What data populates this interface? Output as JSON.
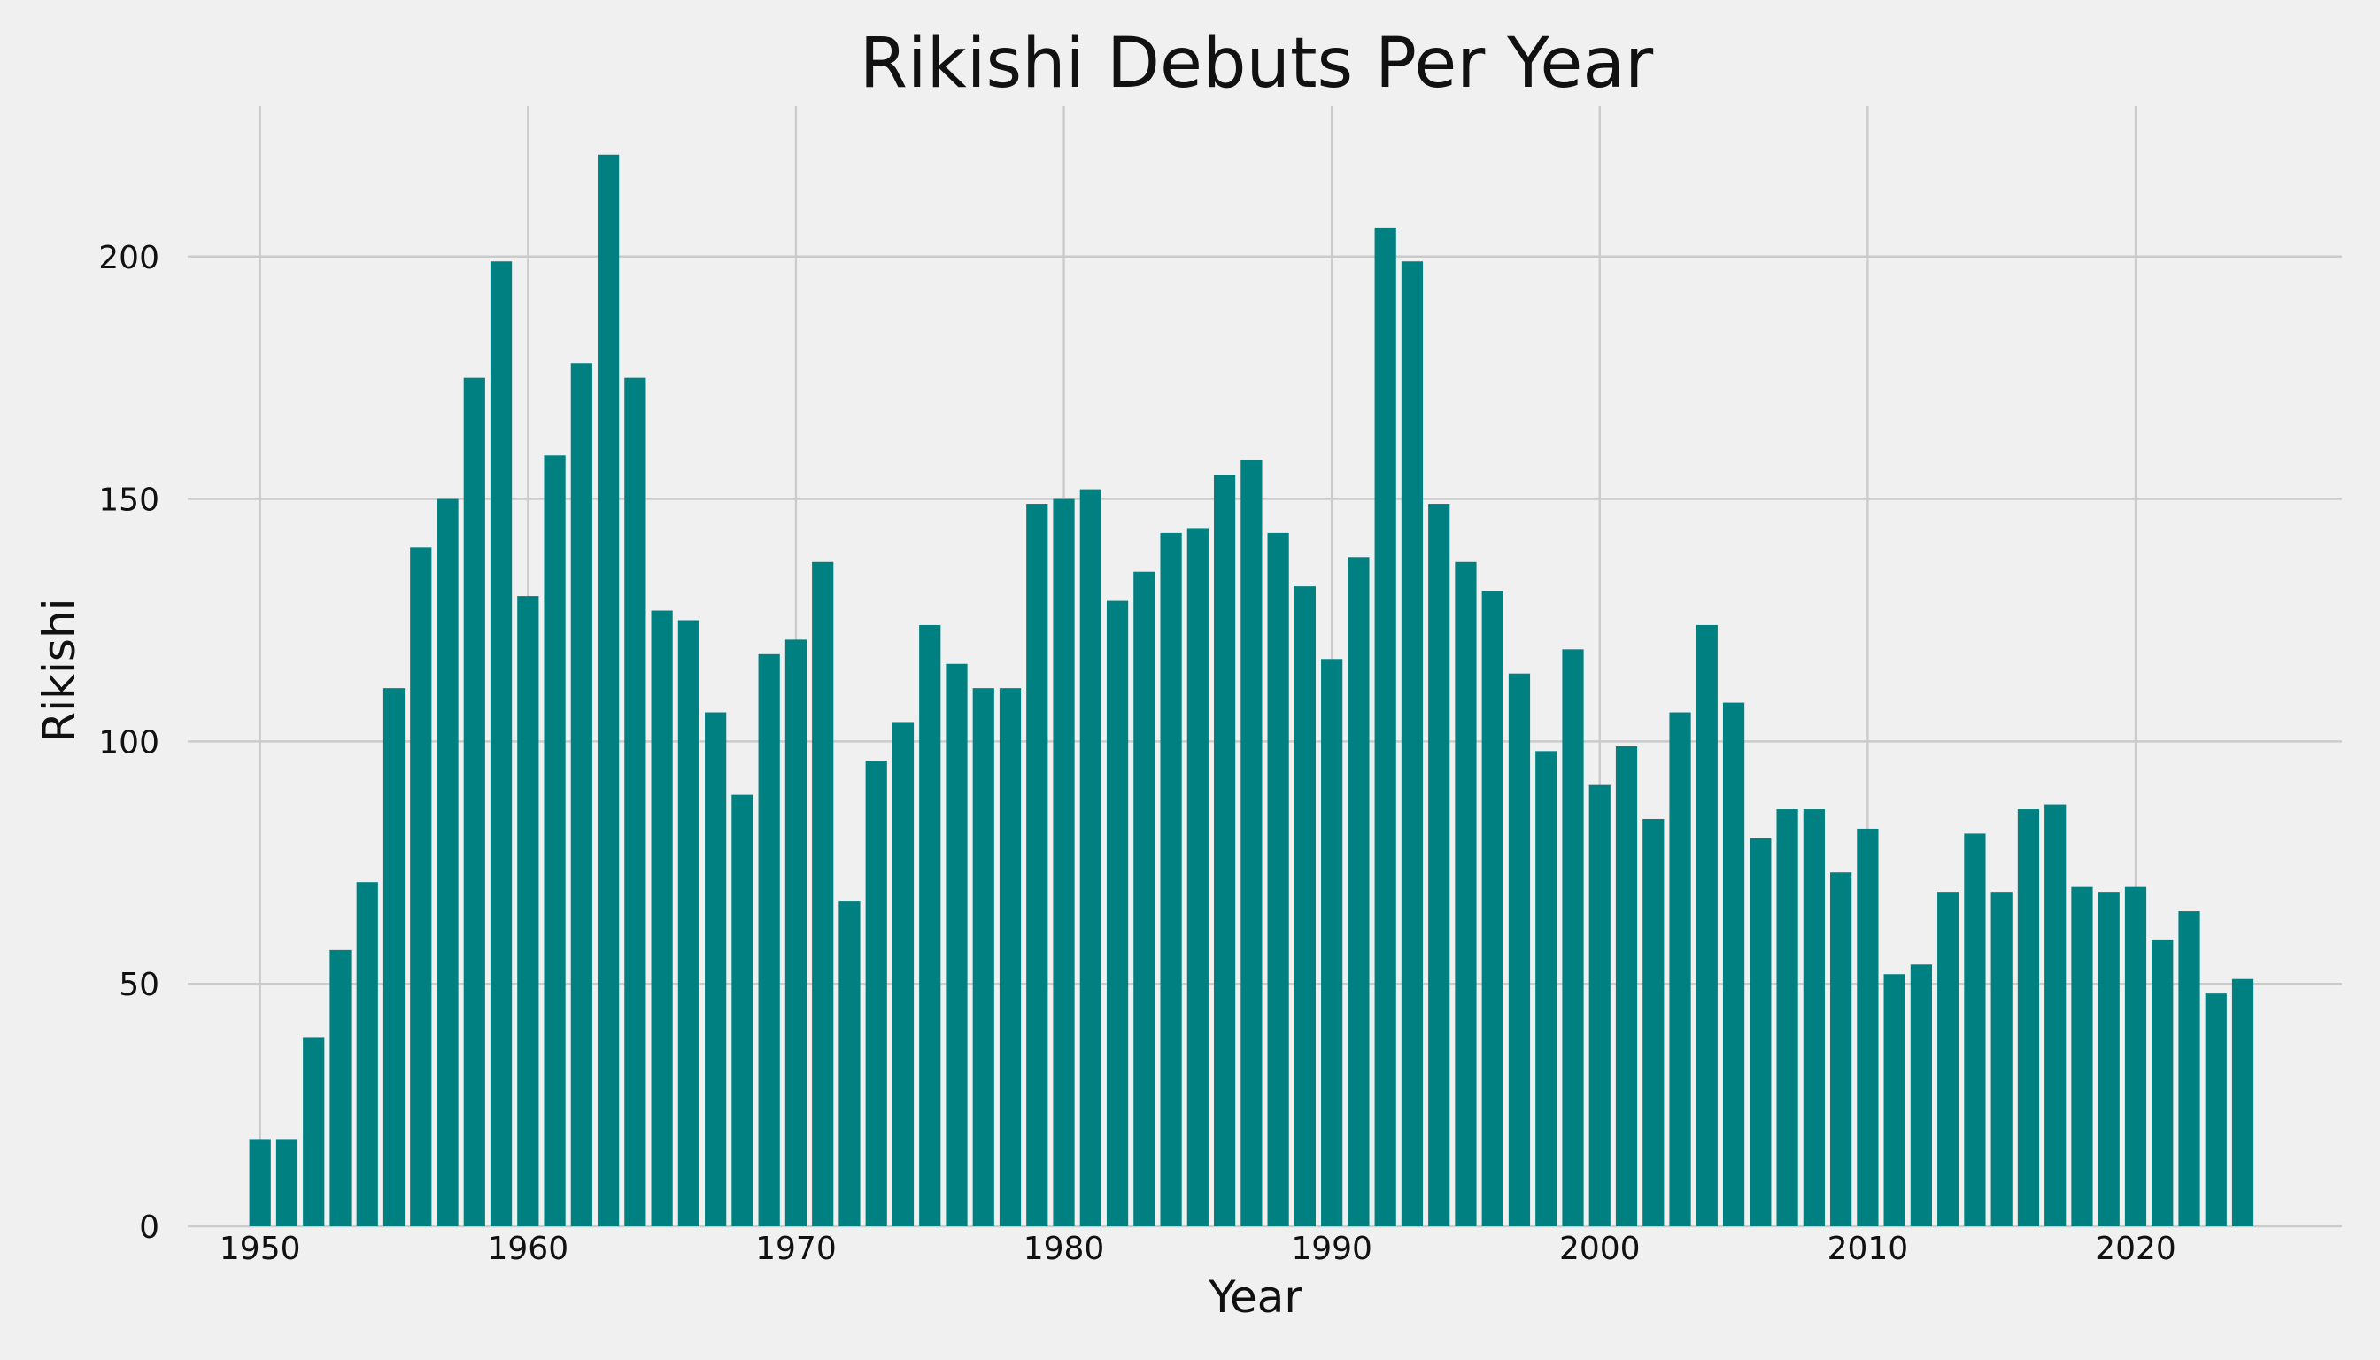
{
  "chart_data": {
    "type": "bar",
    "title": "Rikishi Debuts Per Year",
    "xlabel": "Year",
    "ylabel": "Rikishi",
    "x": [
      1950,
      1951,
      1952,
      1953,
      1954,
      1955,
      1956,
      1957,
      1958,
      1959,
      1960,
      1961,
      1962,
      1963,
      1964,
      1965,
      1966,
      1967,
      1968,
      1969,
      1970,
      1971,
      1972,
      1973,
      1974,
      1975,
      1976,
      1977,
      1978,
      1979,
      1980,
      1981,
      1982,
      1983,
      1984,
      1985,
      1986,
      1987,
      1988,
      1989,
      1990,
      1991,
      1992,
      1993,
      1994,
      1995,
      1996,
      1997,
      1998,
      1999,
      2000,
      2001,
      2002,
      2003,
      2004,
      2005,
      2006,
      2007,
      2008,
      2009,
      2010,
      2011,
      2012,
      2013,
      2014,
      2015,
      2016,
      2017,
      2018,
      2019,
      2020,
      2021,
      2022,
      2023,
      2024
    ],
    "values": [
      18,
      18,
      39,
      57,
      71,
      111,
      140,
      150,
      175,
      199,
      130,
      159,
      178,
      221,
      175,
      127,
      125,
      106,
      89,
      118,
      121,
      137,
      67,
      96,
      104,
      124,
      116,
      111,
      111,
      149,
      150,
      152,
      129,
      135,
      143,
      144,
      155,
      158,
      143,
      132,
      117,
      138,
      206,
      199,
      149,
      137,
      131,
      114,
      98,
      119,
      91,
      99,
      84,
      106,
      124,
      108,
      80,
      86,
      86,
      73,
      82,
      52,
      54,
      69,
      81,
      69,
      86,
      87,
      70,
      69,
      70,
      59,
      65,
      48,
      51
    ],
    "xticks": [
      1950,
      1960,
      1970,
      1980,
      1990,
      2000,
      2010,
      2020
    ],
    "yticks": [
      0,
      50,
      100,
      150,
      200
    ],
    "xlim": [
      1947.3,
      2027.7
    ],
    "ylim": [
      0,
      231
    ],
    "grid": true,
    "bar_color": "#008080",
    "background_color": "#f0f0f0",
    "grid_color": "#cbcbcb"
  }
}
